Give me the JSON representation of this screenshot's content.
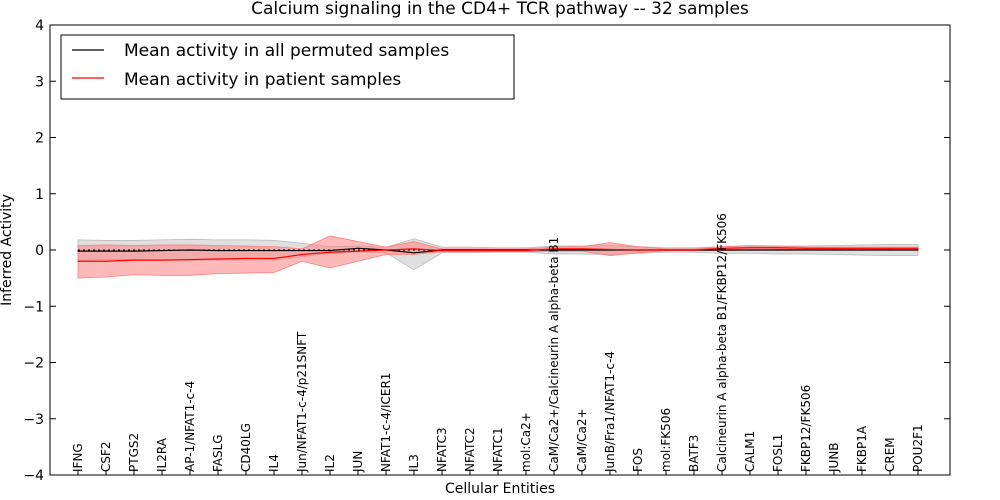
{
  "chart_data": {
    "type": "line",
    "title": "Calcium signaling in the CD4+ TCR pathway -- 32 samples",
    "xlabel": "Cellular Entities",
    "ylabel": "Inferred Activity",
    "ylim": [
      -4,
      4
    ],
    "yticks": [
      "4",
      "3",
      "2",
      "1",
      "0",
      "−1",
      "−2",
      "−3",
      "−4"
    ],
    "categories": [
      "IFNG",
      "CSF2",
      "PTGS2",
      "IL2RA",
      "AP-1/NFAT1-c-4",
      "FASLG",
      "CD40LG",
      "IL4",
      "Jun/NFAT1-c-4/p21SNFT",
      "IL2",
      "JUN",
      "NFAT1-c-4/ICER1",
      "IL3",
      "NFATC3",
      "NFATC2",
      "NFATC1",
      "mol:Ca2+",
      "CaM/Ca2+/Calcineurin A alpha-beta B1",
      "CaM/Ca2+",
      "JunB/Fra1/NFAT1-c-4",
      "FOS",
      "mol:FK506",
      "BATF3",
      "Calcineurin A alpha-beta B1/FKBP12/FK506",
      "CALM1",
      "FOSL1",
      "FKBP12/FK506",
      "JUNB",
      "FKBP1A",
      "CREM",
      "POU2F1"
    ],
    "legend_position": "top-left",
    "series": [
      {
        "name": "Mean activity in all permuted samples",
        "color": "#000000",
        "band_color": "#bbbbbb",
        "values": [
          -0.02,
          -0.02,
          -0.02,
          -0.01,
          0.0,
          -0.01,
          -0.01,
          -0.01,
          -0.01,
          -0.01,
          0.03,
          0.0,
          -0.05,
          0.0,
          0.0,
          0.0,
          0.0,
          0.0,
          0.0,
          0.0,
          0.0,
          0.0,
          0.0,
          0.0,
          0.0,
          0.0,
          0.0,
          0.0,
          0.0,
          0.0,
          0.0
        ],
        "upper": [
          0.18,
          0.17,
          0.17,
          0.18,
          0.19,
          0.18,
          0.18,
          0.17,
          0.12,
          0.06,
          0.07,
          0.05,
          0.2,
          0.05,
          0.05,
          0.04,
          0.04,
          0.07,
          0.07,
          0.08,
          0.06,
          0.04,
          0.04,
          0.06,
          0.06,
          0.07,
          0.07,
          0.08,
          0.09,
          0.1,
          0.1
        ],
        "lower": [
          -0.18,
          -0.17,
          -0.17,
          -0.18,
          -0.19,
          -0.18,
          -0.18,
          -0.17,
          -0.12,
          -0.06,
          -0.03,
          -0.05,
          -0.35,
          -0.05,
          -0.05,
          -0.04,
          -0.04,
          -0.07,
          -0.07,
          -0.08,
          -0.06,
          -0.04,
          -0.04,
          -0.06,
          -0.06,
          -0.07,
          -0.07,
          -0.08,
          -0.09,
          -0.1,
          -0.1
        ]
      },
      {
        "name": "Mean activity in patient samples",
        "color": "#ff0000",
        "band_color": "#ff8080",
        "values": [
          -0.2,
          -0.2,
          -0.18,
          -0.18,
          -0.17,
          -0.16,
          -0.15,
          -0.15,
          -0.08,
          -0.04,
          -0.02,
          0.0,
          0.02,
          -0.01,
          -0.01,
          -0.01,
          -0.01,
          0.02,
          0.02,
          0.01,
          0.0,
          0.0,
          0.0,
          0.03,
          0.04,
          0.04,
          0.03,
          0.03,
          0.03,
          0.03,
          0.03
        ],
        "upper": [
          0.08,
          0.09,
          0.08,
          0.09,
          0.09,
          0.08,
          0.07,
          0.06,
          0.02,
          0.25,
          0.15,
          0.05,
          0.15,
          0.02,
          0.02,
          0.02,
          0.02,
          0.05,
          0.06,
          0.13,
          0.06,
          0.02,
          0.02,
          0.06,
          0.08,
          0.07,
          0.05,
          0.05,
          0.05,
          0.05,
          0.05
        ],
        "lower": [
          -0.5,
          -0.48,
          -0.44,
          -0.45,
          -0.45,
          -0.42,
          -0.41,
          -0.4,
          -0.2,
          -0.32,
          -0.2,
          -0.08,
          -0.08,
          -0.03,
          -0.03,
          -0.03,
          -0.03,
          -0.02,
          -0.02,
          -0.1,
          -0.05,
          -0.01,
          -0.01,
          -0.01,
          0.0,
          0.01,
          0.01,
          0.01,
          0.01,
          0.01,
          0.01
        ]
      }
    ]
  }
}
